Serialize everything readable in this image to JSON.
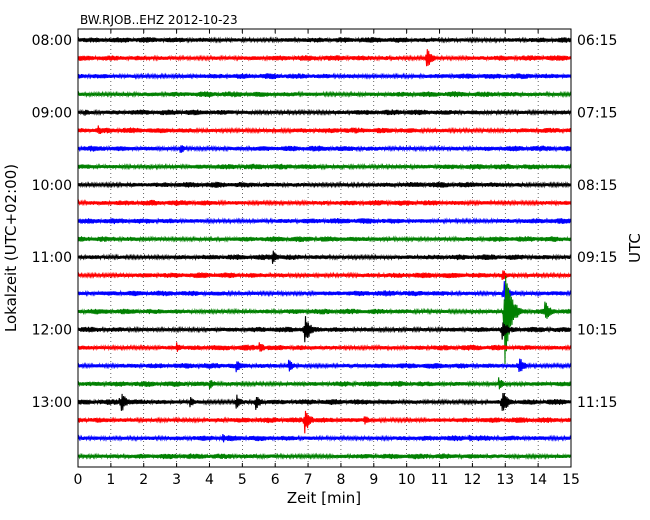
{
  "chart_data": {
    "type": "line",
    "title": "BW.RJOB..EHZ 2012-10-23",
    "xlabel": "Zeit  [min]",
    "ylabel_left": "Lokalzeit (UTC+02:00)",
    "ylabel_right": "UTC",
    "xlim": [
      0,
      15
    ],
    "x_ticks": [
      0,
      1,
      2,
      3,
      4,
      5,
      6,
      7,
      8,
      9,
      10,
      11,
      12,
      13,
      14,
      15
    ],
    "x_grid": "dotted",
    "y_left_ticks": [
      "08:00",
      "09:00",
      "10:00",
      "11:00",
      "12:00",
      "13:00"
    ],
    "y_right_ticks": [
      "06:15",
      "07:15",
      "08:15",
      "09:15",
      "10:15",
      "11:15"
    ],
    "trace_count": 24,
    "color_cycle": [
      "#000000",
      "#ff0000",
      "#0000ff",
      "#008000"
    ],
    "events": [
      {
        "trace": 1,
        "x": 10.6,
        "amp": 12
      },
      {
        "trace": 4,
        "x": 0.2,
        "amp": 5
      },
      {
        "trace": 5,
        "x": 0.6,
        "amp": 6
      },
      {
        "trace": 6,
        "x": 3.1,
        "amp": 6
      },
      {
        "trace": 12,
        "x": 5.9,
        "amp": 9
      },
      {
        "trace": 13,
        "x": 12.9,
        "amp": 7
      },
      {
        "trace": 14,
        "x": 12.95,
        "amp": 14
      },
      {
        "trace": 15,
        "x": 12.98,
        "amp": 65
      },
      {
        "trace": 15,
        "x": 14.2,
        "amp": 12
      },
      {
        "trace": 16,
        "x": 6.9,
        "amp": 16
      },
      {
        "trace": 16,
        "x": 12.9,
        "amp": 12
      },
      {
        "trace": 17,
        "x": 3.0,
        "amp": 6
      },
      {
        "trace": 17,
        "x": 5.5,
        "amp": 7
      },
      {
        "trace": 18,
        "x": 4.8,
        "amp": 8
      },
      {
        "trace": 18,
        "x": 6.4,
        "amp": 7
      },
      {
        "trace": 18,
        "x": 13.4,
        "amp": 11
      },
      {
        "trace": 19,
        "x": 4.0,
        "amp": 6
      },
      {
        "trace": 19,
        "x": 12.8,
        "amp": 7
      },
      {
        "trace": 20,
        "x": 1.3,
        "amp": 13
      },
      {
        "trace": 20,
        "x": 3.4,
        "amp": 7
      },
      {
        "trace": 20,
        "x": 4.8,
        "amp": 9
      },
      {
        "trace": 20,
        "x": 5.4,
        "amp": 9
      },
      {
        "trace": 20,
        "x": 12.9,
        "amp": 14
      },
      {
        "trace": 21,
        "x": 6.9,
        "amp": 14
      },
      {
        "trace": 21,
        "x": 8.7,
        "amp": 6
      },
      {
        "trace": 22,
        "x": 4.4,
        "amp": 5
      },
      {
        "trace": 22,
        "x": 11.9,
        "amp": 5
      }
    ]
  }
}
